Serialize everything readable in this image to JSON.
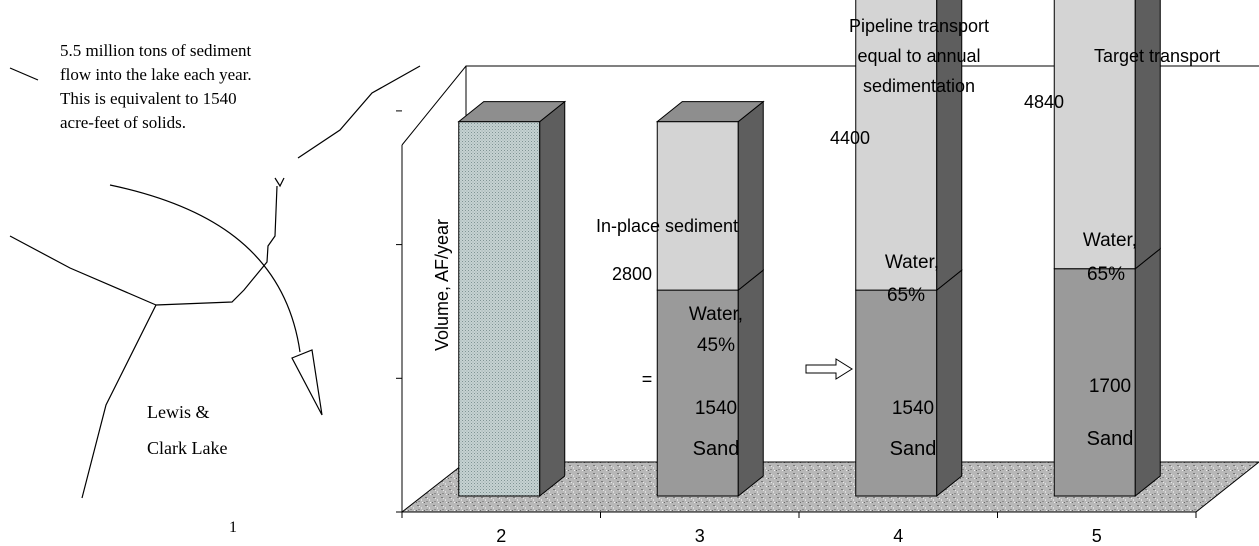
{
  "map": {
    "note_lines": [
      "5.5 million tons of sediment",
      "flow into the lake each year.",
      " This is   equivalent to 1540",
      "acre-feet of solids."
    ],
    "lake_label_lines": [
      "Lewis &",
      "Clark Lake"
    ],
    "stray_mark": "1"
  },
  "chart_data": {
    "type": "bar",
    "subtype": "3d-stacked",
    "ylabel": "Volume, AF/year",
    "categories": [
      "2",
      "3",
      "4",
      "5"
    ],
    "ylim": [
      0,
      5500
    ],
    "y_tick_labels_shown": false,
    "grid": false,
    "floor_texture": "granite",
    "series": [
      {
        "name": "Sand",
        "values": [
          null,
          1540,
          1540,
          1700
        ]
      },
      {
        "name": "Water",
        "values": [
          null,
          1260,
          2860,
          3140
        ]
      }
    ],
    "in_place_total": 2800,
    "totals": [
      null,
      2800,
      4400,
      4840
    ],
    "colors": {
      "in_place_front": "#b9c8c8",
      "sand_front": "#9a9a9a",
      "water_front": "#d4d4d4",
      "side": "#5e5e5e",
      "top": "#8e8e8e"
    },
    "labels": {
      "in_place_title": "In-place sediment",
      "in_place_total": "2800",
      "equals_sign": "=",
      "bar3": {
        "water": [
          "Water,",
          "45%"
        ],
        "sand_value": "1540",
        "sand": "Sand"
      },
      "pipeline_title": [
        "Pipeline transport",
        "equal to annual",
        "sedimentation"
      ],
      "bar4": {
        "total": "4400",
        "water": [
          "Water,",
          "65%"
        ],
        "sand_value": "1540",
        "sand": "Sand"
      },
      "target_title": "Target transport",
      "bar5": {
        "total": "4840",
        "water": [
          "Water,",
          "65%"
        ],
        "sand_value": "1700",
        "sand": "Sand"
      }
    }
  }
}
